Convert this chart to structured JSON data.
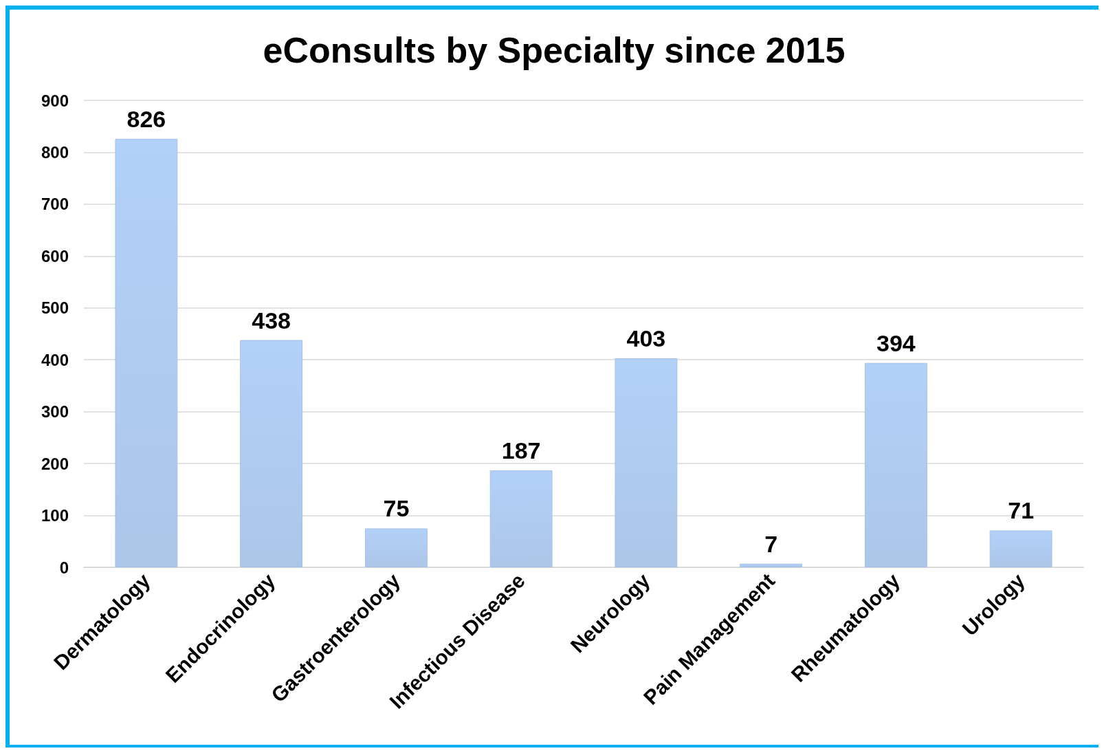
{
  "chart_data": {
    "type": "bar",
    "title": "eConsults by Specialty since 2015",
    "categories": [
      "Dermatology",
      "Endocrinology",
      "Gastroenterology",
      "Infectious Disease",
      "Neurology",
      "Pain Management",
      "Rheumatology",
      "Urology"
    ],
    "values": [
      826,
      438,
      75,
      187,
      403,
      7,
      394,
      71
    ],
    "color": "#a5c2e6",
    "ylim": [
      0,
      900
    ],
    "yticks": [
      0,
      100,
      200,
      300,
      400,
      500,
      600,
      700,
      800,
      900
    ],
    "grid": "y",
    "data_labels": true
  }
}
